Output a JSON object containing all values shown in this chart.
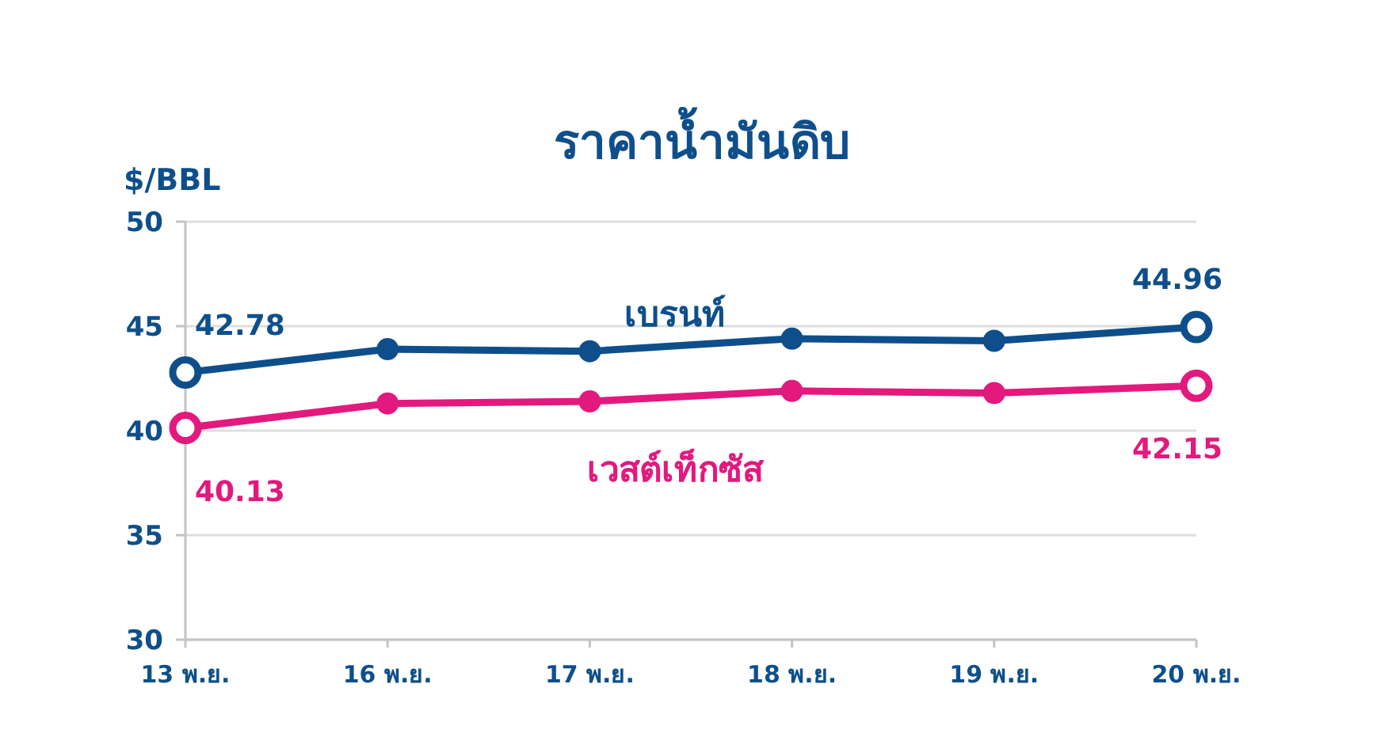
{
  "chart_data": {
    "type": "line",
    "title": "ราคาน้ำมันดิบ",
    "ylabel": "$/BBL",
    "categories": [
      "13 พ.ย.",
      "16 พ.ย.",
      "17 พ.ย.",
      "18 พ.ย.",
      "19 พ.ย.",
      "20 พ.ย."
    ],
    "series": [
      {
        "name": "เบรนท์",
        "color": "#0e4f8b",
        "values": [
          42.78,
          43.9,
          43.8,
          44.4,
          44.3,
          44.96
        ],
        "value_labels": [
          "42.78",
          null,
          null,
          null,
          null,
          "44.96"
        ]
      },
      {
        "name": "เวสต์เท็กซัส",
        "color": "#e3197e",
        "values": [
          40.13,
          41.3,
          41.4,
          41.9,
          41.8,
          42.15
        ],
        "value_labels": [
          "40.13",
          null,
          null,
          null,
          null,
          "42.15"
        ]
      }
    ],
    "ylim": [
      30,
      50
    ],
    "yticks": [
      30,
      35,
      40,
      45,
      50
    ],
    "grid": "y",
    "marker": "circle",
    "line_style": "solid"
  }
}
